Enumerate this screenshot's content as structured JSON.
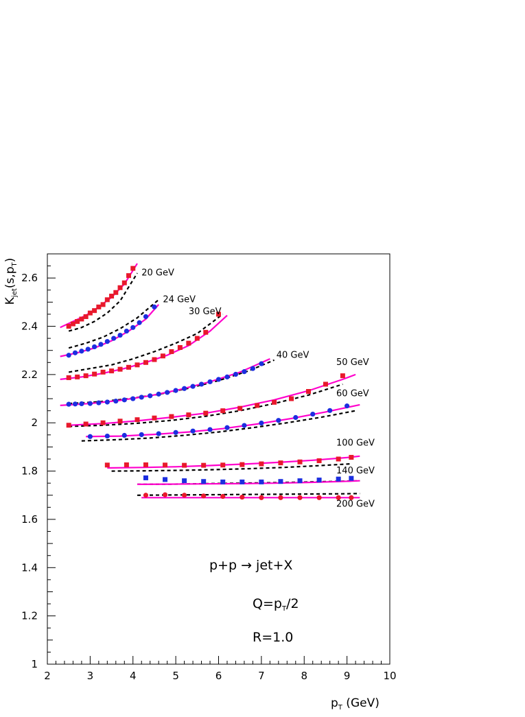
{
  "chart_data": {
    "type": "line",
    "title": "",
    "ylabel": {
      "main": "K",
      "sub": "jet",
      "rest": "(s,p",
      "sub2": "T",
      "close": ")"
    },
    "xlabel": {
      "main": "p",
      "sub": "T",
      "rest": " (GeV)"
    },
    "xlim": [
      2,
      10
    ],
    "ylim": [
      1,
      2.7
    ],
    "grid": false,
    "xticks": [
      2,
      3,
      4,
      5,
      6,
      7,
      8,
      9,
      10
    ],
    "yticks": [
      1,
      1.2,
      1.4,
      1.6,
      1.8,
      2,
      2.2,
      2.4,
      2.6
    ],
    "ytick_labels": [
      "1",
      "1.2",
      "1.4",
      "1.6",
      "1.8",
      "2",
      "2.2",
      "2.4",
      "2.6"
    ],
    "annotations": {
      "process": "p+p → jet+X",
      "scale": "Q=p",
      "scale_sub": "T",
      "scale_rest": "/2",
      "radius": "R=1.0"
    },
    "colors": {
      "solid": "#ff00cc",
      "dashed": "#000000",
      "red": "#e8192c",
      "blue": "#1c2ee0"
    },
    "series": [
      {
        "name": "20 GeV",
        "label_at": [
          4.2,
          2.61
        ],
        "marker": "square",
        "marker_color": "#e8192c",
        "x": [
          2.5,
          2.6,
          2.7,
          2.8,
          2.9,
          3.0,
          3.1,
          3.2,
          3.3,
          3.4,
          3.5,
          3.6,
          3.7,
          3.8,
          3.9,
          4.0
        ],
        "y": [
          2.4,
          2.41,
          2.42,
          2.43,
          2.44,
          2.455,
          2.465,
          2.48,
          2.49,
          2.51,
          2.525,
          2.54,
          2.56,
          2.58,
          2.61,
          2.64
        ],
        "solid_x": [
          2.3,
          2.6,
          2.9,
          3.2,
          3.5,
          3.8,
          4.1
        ],
        "solid_y": [
          2.395,
          2.42,
          2.445,
          2.48,
          2.52,
          2.575,
          2.66
        ],
        "dashed_x": [
          2.5,
          2.8,
          3.1,
          3.4,
          3.7,
          4.1
        ],
        "dashed_y": [
          2.38,
          2.395,
          2.42,
          2.455,
          2.505,
          2.62
        ]
      },
      {
        "name": "24 GeV",
        "label_at": [
          4.7,
          2.5
        ],
        "marker": "circle",
        "marker_color": "#1c2ee0",
        "x": [
          2.5,
          2.65,
          2.8,
          2.95,
          3.1,
          3.25,
          3.4,
          3.55,
          3.7,
          3.85,
          4.0,
          4.15,
          4.3,
          4.5
        ],
        "y": [
          2.28,
          2.29,
          2.297,
          2.305,
          2.315,
          2.325,
          2.337,
          2.35,
          2.363,
          2.38,
          2.395,
          2.415,
          2.44,
          2.48
        ],
        "solid_x": [
          2.3,
          2.7,
          3.1,
          3.5,
          3.9,
          4.3,
          4.6
        ],
        "solid_y": [
          2.275,
          2.29,
          2.31,
          2.34,
          2.38,
          2.43,
          2.49
        ],
        "dashed_x": [
          2.5,
          2.9,
          3.3,
          3.7,
          4.1,
          4.6
        ],
        "dashed_y": [
          2.31,
          2.33,
          2.355,
          2.39,
          2.435,
          2.51
        ]
      },
      {
        "name": "30 GeV",
        "label_at": [
          5.3,
          2.45
        ],
        "marker": "square",
        "marker_color": "#e8192c",
        "x": [
          2.5,
          2.7,
          2.9,
          3.1,
          3.3,
          3.5,
          3.7,
          3.9,
          4.1,
          4.3,
          4.5,
          4.7,
          4.9,
          5.1,
          5.3,
          5.5,
          5.7,
          6.0
        ],
        "y": [
          2.187,
          2.19,
          2.195,
          2.202,
          2.21,
          2.215,
          2.222,
          2.23,
          2.24,
          2.25,
          2.262,
          2.277,
          2.295,
          2.312,
          2.33,
          2.35,
          2.375,
          2.45
        ],
        "solid_x": [
          2.3,
          2.8,
          3.3,
          3.8,
          4.3,
          4.8,
          5.3,
          5.8,
          6.2
        ],
        "solid_y": [
          2.18,
          2.19,
          2.205,
          2.225,
          2.25,
          2.28,
          2.32,
          2.38,
          2.445
        ],
        "dashed_x": [
          2.5,
          3.0,
          3.5,
          4.0,
          4.5,
          5.0,
          5.5,
          6.1
        ],
        "dashed_y": [
          2.21,
          2.225,
          2.24,
          2.265,
          2.295,
          2.33,
          2.37,
          2.45
        ]
      },
      {
        "name": "40 GeV",
        "label_at": [
          7.35,
          2.27
        ],
        "marker": "circle",
        "marker_color": "#1c2ee0",
        "x": [
          2.5,
          2.65,
          2.8,
          3.0,
          3.2,
          3.4,
          3.6,
          3.8,
          4.0,
          4.2,
          4.4,
          4.6,
          4.8,
          5.0,
          5.2,
          5.4,
          5.6,
          5.8,
          6.0,
          6.2,
          6.4,
          6.6,
          6.8,
          7.0
        ],
        "y": [
          2.077,
          2.078,
          2.079,
          2.08,
          2.083,
          2.086,
          2.09,
          2.095,
          2.1,
          2.106,
          2.112,
          2.119,
          2.126,
          2.134,
          2.142,
          2.151,
          2.16,
          2.17,
          2.18,
          2.19,
          2.201,
          2.212,
          2.225,
          2.245
        ],
        "solid_x": [
          2.3,
          3.0,
          3.7,
          4.4,
          5.1,
          5.8,
          6.5,
          7.2
        ],
        "solid_y": [
          2.072,
          2.08,
          2.093,
          2.112,
          2.138,
          2.17,
          2.21,
          2.265
        ],
        "dashed_x": [
          2.5,
          3.2,
          3.9,
          4.6,
          5.3,
          6.0,
          6.7,
          7.3
        ],
        "dashed_y": [
          2.08,
          2.087,
          2.1,
          2.118,
          2.143,
          2.175,
          2.215,
          2.26
        ]
      },
      {
        "name": "50 GeV",
        "label_at": [
          8.75,
          2.24
        ],
        "marker": "square",
        "marker_color": "#e8192c",
        "x": [
          2.5,
          2.9,
          3.3,
          3.7,
          4.1,
          4.5,
          4.9,
          5.3,
          5.7,
          6.1,
          6.5,
          6.9,
          7.3,
          7.7,
          8.1,
          8.5,
          8.9
        ],
        "y": [
          1.99,
          1.995,
          2.0,
          2.007,
          2.013,
          2.02,
          2.026,
          2.033,
          2.04,
          2.05,
          2.06,
          2.072,
          2.085,
          2.1,
          2.13,
          2.16,
          2.195
        ],
        "solid_x": [
          2.5,
          3.3,
          4.1,
          4.9,
          5.7,
          6.5,
          7.3,
          8.1,
          8.9,
          9.2
        ],
        "solid_y": [
          1.99,
          1.997,
          2.008,
          2.023,
          2.04,
          2.065,
          2.095,
          2.133,
          2.18,
          2.2
        ],
        "dashed_x": [
          2.5,
          3.3,
          4.1,
          4.9,
          5.7,
          6.5,
          7.3,
          8.1,
          8.9
        ],
        "dashed_y": [
          1.985,
          1.99,
          1.998,
          2.01,
          2.027,
          2.05,
          2.08,
          2.115,
          2.16
        ]
      },
      {
        "name": "60 GeV",
        "label_at": [
          8.75,
          2.11
        ],
        "marker": "circle",
        "marker_color": "#1c2ee0",
        "x": [
          3.0,
          3.4,
          3.8,
          4.2,
          4.6,
          5.0,
          5.4,
          5.8,
          6.2,
          6.6,
          7.0,
          7.4,
          7.8,
          8.2,
          8.6,
          9.0
        ],
        "y": [
          1.943,
          1.945,
          1.948,
          1.951,
          1.955,
          1.96,
          1.966,
          1.972,
          1.98,
          1.989,
          1.999,
          2.01,
          2.022,
          2.036,
          2.051,
          2.07
        ],
        "solid_x": [
          2.9,
          3.7,
          4.5,
          5.3,
          6.1,
          6.9,
          7.7,
          8.5,
          9.3
        ],
        "solid_y": [
          1.943,
          1.945,
          1.952,
          1.962,
          1.976,
          1.995,
          2.018,
          2.045,
          2.075
        ],
        "dashed_x": [
          2.8,
          3.6,
          4.4,
          5.2,
          6.0,
          6.8,
          7.6,
          8.4,
          9.2
        ],
        "dashed_y": [
          1.925,
          1.93,
          1.937,
          1.948,
          1.962,
          1.98,
          2.0,
          2.023,
          2.05
        ]
      },
      {
        "name": "100 GeV",
        "label_at": [
          8.75,
          1.905
        ],
        "marker": "square",
        "marker_color": "#e8192c",
        "x": [
          3.4,
          3.85,
          4.3,
          4.75,
          5.2,
          5.65,
          6.1,
          6.55,
          7.0,
          7.45,
          7.9,
          8.35,
          8.8,
          9.1
        ],
        "y": [
          1.825,
          1.826,
          1.826,
          1.825,
          1.824,
          1.824,
          1.825,
          1.827,
          1.83,
          1.834,
          1.838,
          1.843,
          1.85,
          1.857
        ],
        "solid_x": [
          3.4,
          4.2,
          5.0,
          5.8,
          6.6,
          7.4,
          8.2,
          9.0,
          9.3
        ],
        "solid_y": [
          1.813,
          1.815,
          1.818,
          1.823,
          1.829,
          1.836,
          1.845,
          1.856,
          1.862
        ],
        "dashed_x": [
          3.5,
          4.3,
          5.1,
          5.9,
          6.7,
          7.5,
          8.3,
          9.1
        ],
        "dashed_y": [
          1.8,
          1.801,
          1.803,
          1.806,
          1.81,
          1.815,
          1.822,
          1.83
        ]
      },
      {
        "name": "140 GeV",
        "label_at": [
          8.75,
          1.79
        ],
        "marker": "square",
        "marker_color": "#1c2ee0",
        "x": [
          4.3,
          4.75,
          5.2,
          5.65,
          6.1,
          6.55,
          7.0,
          7.45,
          7.9,
          8.35,
          8.8,
          9.1
        ],
        "y": [
          1.772,
          1.765,
          1.76,
          1.757,
          1.755,
          1.755,
          1.755,
          1.757,
          1.76,
          1.763,
          1.767,
          1.77
        ],
        "solid_x": [
          4.1,
          4.9,
          5.7,
          6.5,
          7.3,
          8.1,
          8.9,
          9.3
        ],
        "solid_y": [
          1.745,
          1.746,
          1.747,
          1.748,
          1.75,
          1.753,
          1.757,
          1.76
        ],
        "dashed_x": [
          4.1,
          4.9,
          5.7,
          6.5,
          7.3,
          8.1,
          8.9,
          9.3
        ],
        "dashed_y": [
          1.745,
          1.746,
          1.748,
          1.75,
          1.752,
          1.755,
          1.758,
          1.76
        ]
      },
      {
        "name": "200 GeV",
        "label_at": [
          8.75,
          1.6525
        ],
        "marker": "circle",
        "marker_color": "#e8192c",
        "x": [
          4.3,
          4.75,
          5.2,
          5.65,
          6.1,
          6.55,
          7.0,
          7.45,
          7.9,
          8.35,
          8.8,
          9.1
        ],
        "y": [
          1.7,
          1.702,
          1.7,
          1.697,
          1.695,
          1.692,
          1.69,
          1.69,
          1.69,
          1.69,
          1.69,
          1.69
        ],
        "solid_x": [
          4.2,
          5.0,
          5.8,
          6.6,
          7.4,
          8.2,
          9.0,
          9.3
        ],
        "solid_y": [
          1.69,
          1.69,
          1.69,
          1.69,
          1.69,
          1.69,
          1.69,
          1.69
        ],
        "dashed_x": [
          4.1,
          4.9,
          5.7,
          6.5,
          7.3,
          8.1,
          8.9,
          9.3
        ],
        "dashed_y": [
          1.7,
          1.701,
          1.702,
          1.703,
          1.704,
          1.705,
          1.706,
          1.707
        ]
      }
    ]
  }
}
